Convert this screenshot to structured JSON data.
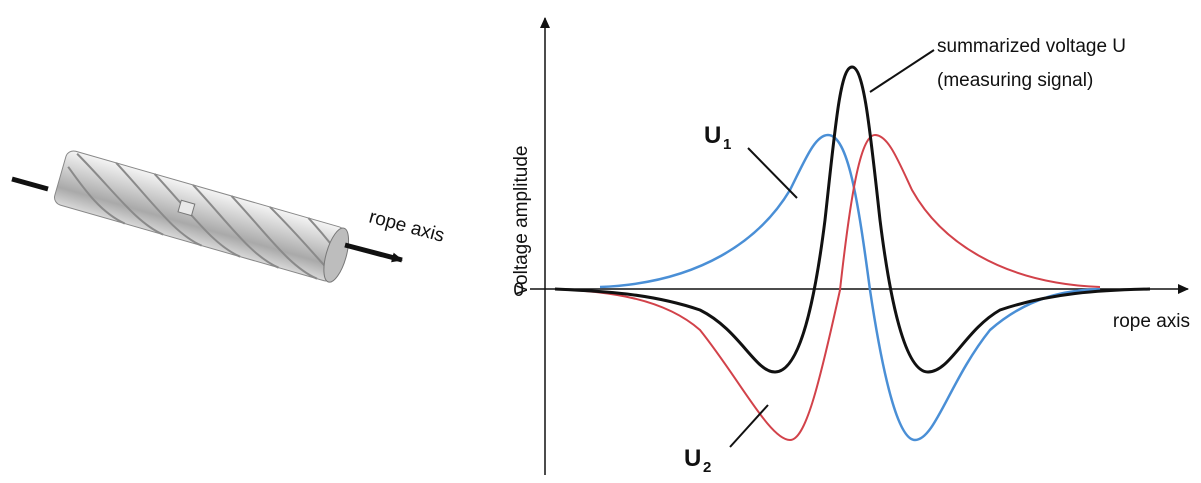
{
  "rope": {
    "label": "rope axis"
  },
  "plot": {
    "y_axis_label": "voltage amplitude",
    "zero_label": "0",
    "x_axis_label": "rope axis",
    "sum_label": {
      "line1": "summarized voltage U",
      "line2": "(measuring signal)"
    },
    "u1": {
      "label": "U",
      "subscript": "1"
    },
    "u2": {
      "label": "U",
      "subscript": "2"
    }
  }
}
